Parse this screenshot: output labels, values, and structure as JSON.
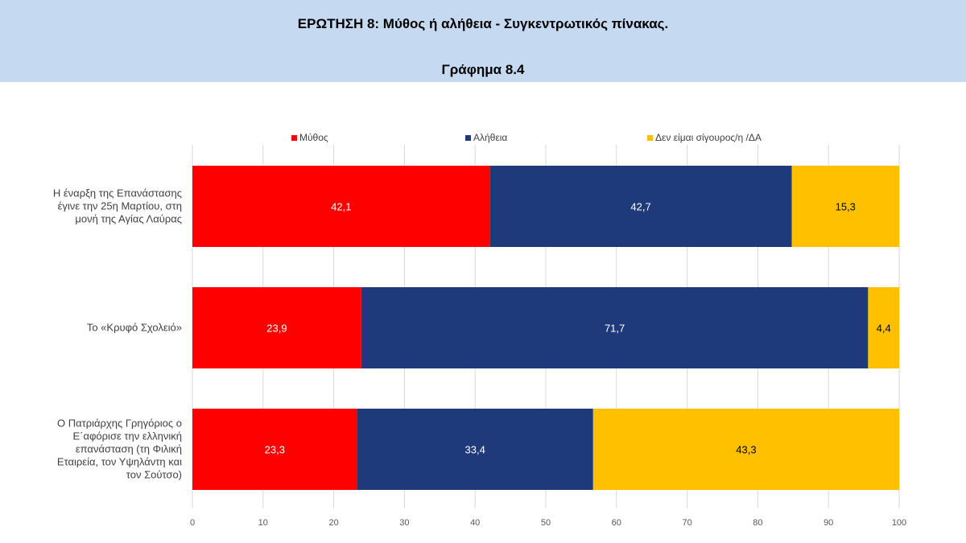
{
  "header": {
    "title": "ΕΡΩΤΗΣΗ 8: Μύθος ή αλήθεια - Συγκεντρωτικός πίνακας.",
    "subtitle": "Γράφημα 8.4"
  },
  "chart_data": {
    "type": "bar",
    "orientation": "horizontal",
    "stacked": true,
    "categories": [
      "Η έναρξη της Επανάστασης έγινε την 25η Μαρτίου, στη μονή της Αγίας Λαύρας",
      "Το «Κρυφό Σχολειό»",
      "Ο Πατριάρχης Γρηγόριος ο Ε΄αφόρισε την ελληνική επανάσταση (τη Φιλική Εταιρεία, τον Υψηλάντη και τον Σούτσο)"
    ],
    "category_lines": [
      [
        "Η έναρξη της Επανάστασης",
        "έγινε την 25η Μαρτίου, στη",
        "μονή της Αγίας Λαύρας"
      ],
      [
        "Το «Κρυφό Σχολειό»"
      ],
      [
        "Ο Πατριάρχης Γρηγόριος ο",
        "Ε΄αφόρισε την ελληνική",
        "επανάσταση (τη Φιλική",
        "Εταιρεία, τον Υψηλάντη και",
        "τον Σούτσο)"
      ]
    ],
    "series": [
      {
        "name": "Μύθος",
        "values": [
          42.1,
          23.9,
          23.3
        ],
        "labels": [
          "42,1",
          "23,9",
          "23,3"
        ],
        "color": "#ff0000",
        "label_color": "#ffffff"
      },
      {
        "name": "Αλήθεια",
        "values": [
          42.7,
          71.7,
          33.4
        ],
        "labels": [
          "42,7",
          "71,7",
          "33,4"
        ],
        "color": "#1f3a7a",
        "label_color": "#ffffff"
      },
      {
        "name": "Δεν είμαι σίγουρος/η /ΔΑ",
        "values": [
          15.3,
          4.4,
          43.3
        ],
        "labels": [
          "15,3",
          "4,4",
          "43,3"
        ],
        "color": "#ffc000",
        "label_color": "#000000"
      }
    ],
    "xlim": [
      0,
      100
    ],
    "xticks": [
      0,
      10,
      20,
      30,
      40,
      50,
      60,
      70,
      80,
      90,
      100
    ],
    "grid": true,
    "legend_position": "top"
  }
}
